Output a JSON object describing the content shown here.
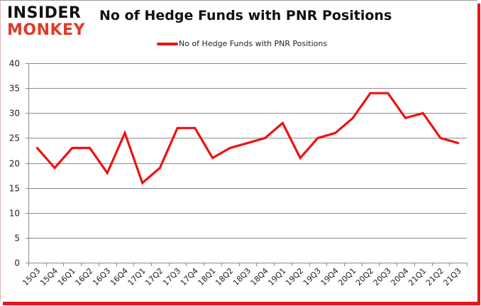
{
  "brand": {
    "line1": "INSIDER",
    "line2": "MONKEY"
  },
  "chart_data": {
    "type": "line",
    "title": "No of Hedge Funds with PNR Positions",
    "xlabel": "",
    "ylabel": "",
    "ylim": [
      0,
      40
    ],
    "yticks": [
      0,
      5,
      10,
      15,
      20,
      25,
      30,
      35,
      40
    ],
    "grid": true,
    "legend_position": "top",
    "categories": [
      "15Q3",
      "15Q4",
      "16Q1",
      "16Q2",
      "16Q3",
      "16Q4",
      "17Q1",
      "17Q2",
      "17Q3",
      "17Q4",
      "18Q1",
      "18Q2",
      "18Q3",
      "18Q4",
      "19Q1",
      "19Q2",
      "19Q3",
      "19Q4",
      "20Q1",
      "20Q2",
      "20Q3",
      "20Q4",
      "21Q1",
      "21Q2",
      "21Q3"
    ],
    "series": [
      {
        "name": "No of Hedge Funds with PNR Positions",
        "color": "#ee1111",
        "values": [
          23,
          19,
          23,
          23,
          18,
          26,
          16,
          19,
          27,
          27,
          21,
          23,
          24,
          25,
          28,
          21,
          25,
          26,
          29,
          34,
          34,
          29,
          30,
          25,
          24
        ]
      }
    ]
  }
}
